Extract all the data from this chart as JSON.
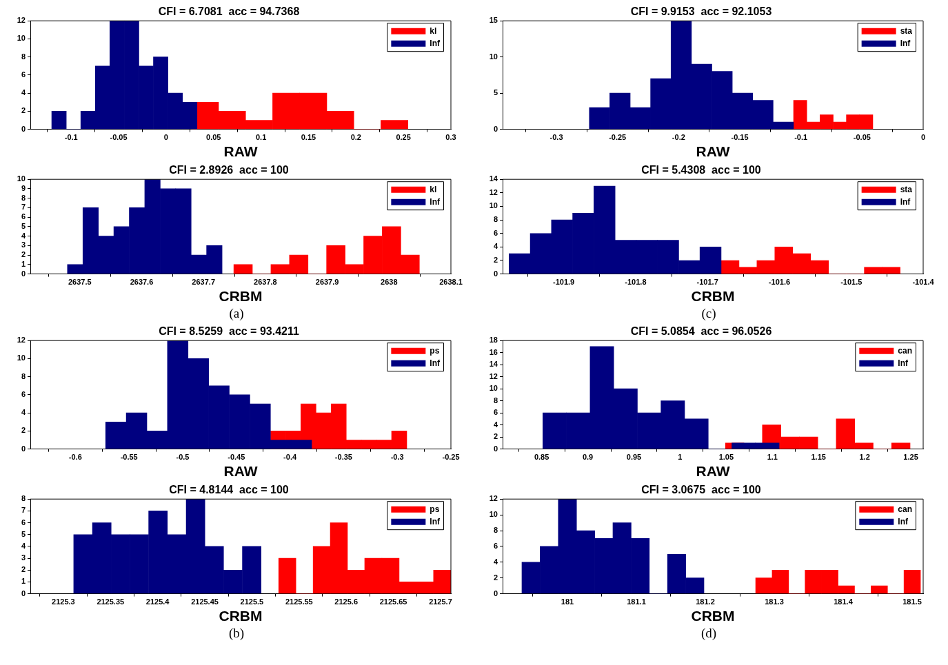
{
  "chart_data": [
    {
      "type": "bar",
      "title": "CFI = 6.7081  acc = 94.7368",
      "xlabel": "RAW",
      "legend": "top right",
      "xlim": [
        -0.143,
        0.3
      ],
      "xticks": [
        -0.1,
        -0.05,
        0,
        0.05,
        0.1,
        0.15,
        0.2,
        0.25,
        0.3
      ],
      "ylim": [
        0,
        12
      ],
      "yticks": [
        0,
        2,
        4,
        6,
        8,
        10,
        12
      ],
      "series": [
        {
          "name": "kl",
          "color": "#ff0000",
          "x": [
            0.041,
            0.0695,
            0.098,
            0.1265,
            0.155,
            0.1835,
            0.212,
            0.2405
          ],
          "values": [
            3,
            2,
            1,
            4,
            4,
            2,
            0,
            1
          ]
        },
        {
          "name": "Inf",
          "color": "#000080",
          "x": [
            -0.1128,
            -0.0975,
            -0.0822,
            -0.0669,
            -0.0516,
            -0.0363,
            -0.021,
            -0.0057,
            0.0096,
            0.0249
          ],
          "values": [
            2,
            0,
            2,
            7,
            12,
            12,
            7,
            8,
            4,
            3
          ]
        }
      ]
    },
    {
      "type": "bar",
      "title": "CFI = 9.9153  acc = 92.1053",
      "xlabel": "RAW",
      "legend": "top right",
      "xlim": [
        -0.344,
        0
      ],
      "xticks": [
        -0.3,
        -0.25,
        -0.2,
        -0.15,
        -0.1,
        -0.05,
        0
      ],
      "ylim": [
        0,
        15
      ],
      "yticks": [
        0,
        5,
        10,
        15
      ],
      "series": [
        {
          "name": "sta",
          "color": "#ff0000",
          "x": [
            -0.1006,
            -0.0898,
            -0.079,
            -0.0682,
            -0.0574,
            -0.0466
          ],
          "values": [
            4,
            1,
            2,
            1,
            2,
            2
          ]
        },
        {
          "name": "Inf",
          "color": "#000080",
          "x": [
            -0.2647,
            -0.248,
            -0.2313,
            -0.2146,
            -0.1979,
            -0.1812,
            -0.1645,
            -0.1478,
            -0.1311,
            -0.1144
          ],
          "values": [
            3,
            5,
            3,
            7,
            15,
            9,
            8,
            5,
            4,
            1
          ]
        }
      ]
    },
    {
      "type": "bar",
      "title": "CFI = 2.8926  acc = 100",
      "xlabel": "CRBM",
      "legend": "top right",
      "annotations": [
        "(a)"
      ],
      "xlim": [
        2637.42,
        2638.1
      ],
      "xticks": [
        2637.5,
        2637.6,
        2637.7,
        2637.8,
        2637.9,
        2638,
        2638.1
      ],
      "ylim": [
        0,
        10
      ],
      "yticks": [
        0,
        1,
        2,
        3,
        4,
        5,
        6,
        7,
        8,
        9,
        10
      ],
      "series": [
        {
          "name": "kl",
          "color": "#ff0000",
          "x": [
            2637.764,
            2637.794,
            2637.824,
            2637.854,
            2637.884,
            2637.914,
            2637.944,
            2637.974,
            2638.004,
            2638.034
          ],
          "values": [
            1,
            0,
            1,
            2,
            0,
            3,
            1,
            4,
            5,
            2
          ]
        },
        {
          "name": "Inf",
          "color": "#000080",
          "x": [
            2637.4925,
            2637.5175,
            2637.5425,
            2637.5675,
            2637.5925,
            2637.6175,
            2637.6425,
            2637.6675,
            2637.6925,
            2637.7175
          ],
          "values": [
            1,
            7,
            4,
            5,
            7,
            10,
            9,
            9,
            2,
            3
          ]
        }
      ]
    },
    {
      "type": "bar",
      "title": "CFI = 5.4308  acc = 100",
      "xlabel": "CRBM",
      "legend": "top right",
      "annotations": [
        "(c)"
      ],
      "xlim": [
        -101.985,
        -101.4
      ],
      "xticks": [
        -101.9,
        -101.8,
        -101.7,
        -101.6,
        -101.5,
        -101.4
      ],
      "ylim": [
        0,
        14
      ],
      "yticks": [
        0,
        2,
        4,
        6,
        8,
        10,
        12,
        14
      ],
      "series": [
        {
          "name": "sta",
          "color": "#ff0000",
          "x": [
            -101.6686,
            -101.6437,
            -101.6188,
            -101.5939,
            -101.569,
            -101.5441,
            -101.5192,
            -101.4943,
            -101.4694,
            -101.4445
          ],
          "values": [
            2,
            1,
            2,
            4,
            3,
            2,
            0,
            0,
            1,
            1
          ]
        },
        {
          "name": "Inf",
          "color": "#000080",
          "x": [
            -101.9613,
            -101.9318,
            -101.9023,
            -101.8728,
            -101.8433,
            -101.8138,
            -101.7843,
            -101.7548,
            -101.7253,
            -101.6958
          ],
          "values": [
            3,
            6,
            8,
            9,
            13,
            5,
            5,
            5,
            2,
            4
          ]
        }
      ]
    },
    {
      "type": "bar",
      "title": "CFI = 8.5259  acc = 93.4211",
      "xlabel": "RAW",
      "legend": "top right",
      "xlim": [
        -0.642,
        -0.25
      ],
      "xticks": [
        -0.6,
        -0.55,
        -0.5,
        -0.45,
        -0.4,
        -0.35,
        -0.3,
        -0.25
      ],
      "ylim": [
        0,
        12
      ],
      "yticks": [
        0,
        2,
        4,
        6,
        8,
        10,
        12
      ],
      "series": [
        {
          "name": "ps",
          "color": "#ff0000",
          "x": [
            -0.411,
            -0.3969,
            -0.3828,
            -0.3687,
            -0.3546,
            -0.3405,
            -0.3264,
            -0.3123,
            -0.2982
          ],
          "values": [
            2,
            2,
            5,
            4,
            5,
            1,
            1,
            1,
            2
          ]
        },
        {
          "name": "Inf",
          "color": "#000080",
          "x": [
            -0.5622,
            -0.543,
            -0.5238,
            -0.5046,
            -0.4854,
            -0.4662,
            -0.447,
            -0.4278,
            -0.4086,
            -0.3894
          ],
          "values": [
            3,
            4,
            2,
            12,
            10,
            7,
            6,
            5,
            1,
            1
          ]
        }
      ]
    },
    {
      "type": "bar",
      "title": "CFI = 5.0854  acc = 96.0526",
      "xlabel": "RAW",
      "legend": "top right",
      "xlim": [
        0.8077,
        1.2634
      ],
      "xticks": [
        0.85,
        0.9,
        0.95,
        1,
        1.05,
        1.1,
        1.15,
        1.2,
        1.25
      ],
      "ylim": [
        0,
        18
      ],
      "yticks": [
        0,
        2,
        4,
        6,
        8,
        10,
        12,
        14,
        16,
        18
      ],
      "series": [
        {
          "name": "can",
          "color": "#ff0000",
          "x": [
            1.0592,
            1.0792,
            1.0992,
            1.1192,
            1.1392,
            1.1592,
            1.1792,
            1.1992,
            1.2192,
            1.2392
          ],
          "values": [
            1,
            null,
            4,
            2,
            2,
            0,
            5,
            1,
            0,
            1
          ]
        },
        {
          "name": "Inf",
          "color": "#000080",
          "x": [
            0.8641,
            0.8897,
            0.9153,
            0.9409,
            0.9665,
            0.9921,
            1.0177,
            1.0433,
            1.0689,
            1.0945
          ],
          "values": [
            6,
            6,
            17,
            10,
            6,
            8,
            5,
            0,
            1,
            1
          ]
        }
      ]
    },
    {
      "type": "bar",
      "title": "CFI = 4.8144  acc = 100",
      "xlabel": "CRBM",
      "legend": "top right",
      "annotations": [
        "(b)"
      ],
      "xlim": [
        2125.265,
        2125.711
      ],
      "xticks": [
        2125.3,
        2125.35,
        2125.4,
        2125.45,
        2125.5,
        2125.55,
        2125.6,
        2125.65,
        2125.7
      ],
      "ylim": [
        0,
        8
      ],
      "yticks": [
        0,
        1,
        2,
        3,
        4,
        5,
        6,
        7,
        8
      ],
      "series": [
        {
          "name": "ps",
          "color": "#ff0000",
          "x": [
            2125.5375,
            2125.5558,
            2125.574,
            2125.5922,
            2125.6105,
            2125.6287,
            2125.647,
            2125.6652,
            2125.6835,
            2125.7017
          ],
          "values": [
            3,
            0,
            4,
            6,
            2,
            3,
            3,
            1,
            1,
            2
          ]
        },
        {
          "name": "Inf",
          "color": "#000080",
          "x": [
            2125.3209,
            2125.3408,
            2125.3607,
            2125.3805,
            2125.4004,
            2125.4203,
            2125.4402,
            2125.46,
            2125.4799,
            2125.4998
          ],
          "values": [
            5,
            6,
            5,
            5,
            7,
            5,
            8,
            4,
            2,
            4
          ]
        }
      ]
    },
    {
      "type": "bar",
      "title": "CFI = 3.0675  acc = 100",
      "xlabel": "CRBM",
      "legend": "top right",
      "annotations": [
        "(d)"
      ],
      "xlim": [
        180.906,
        181.516
      ],
      "xticks": [
        181,
        181.1,
        181.2,
        181.3,
        181.4,
        181.5
      ],
      "ylim": [
        0,
        12
      ],
      "yticks": [
        0,
        2,
        4,
        6,
        8,
        10,
        12
      ],
      "series": [
        {
          "name": "can",
          "color": "#ff0000",
          "x": [
            181.285,
            181.3089,
            181.3328,
            181.3567,
            181.3806,
            181.4045,
            181.4284,
            181.4523,
            181.4762,
            181.5001
          ],
          "values": [
            2,
            3,
            0,
            3,
            3,
            1,
            0,
            1,
            0,
            3
          ]
        },
        {
          "name": "Inf",
          "color": "#000080",
          "x": [
            180.9472,
            180.9736,
            181,
            181.0264,
            181.0528,
            181.0792,
            181.1056,
            181.132,
            181.1584,
            181.1848
          ],
          "values": [
            4,
            6,
            12,
            8,
            7,
            9,
            7,
            0,
            5,
            2
          ]
        }
      ]
    }
  ]
}
